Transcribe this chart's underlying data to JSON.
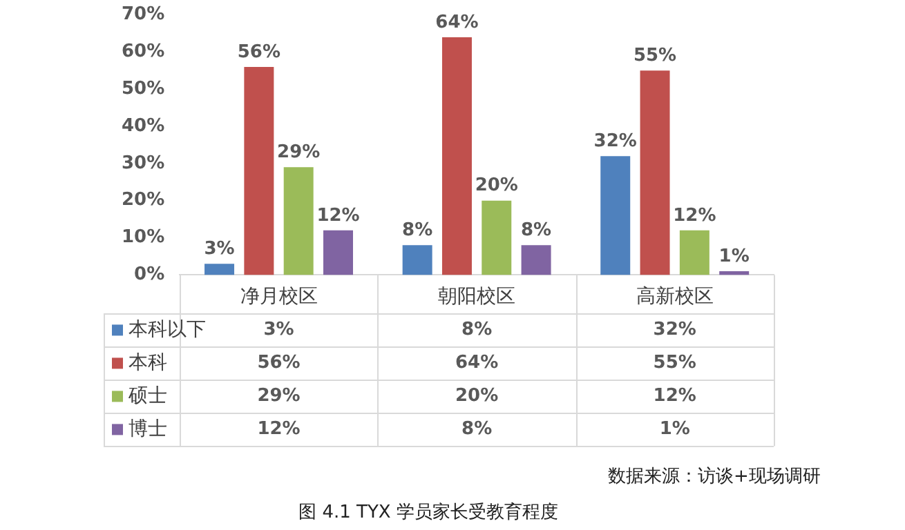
{
  "chart_data": {
    "type": "bar",
    "title": "图 4.1 TYX 学员家长受教育程度",
    "annotations": [
      "数据来源：访谈+现场调研"
    ],
    "categories": [
      "净月校区",
      "朝阳校区",
      "高新校区"
    ],
    "series": [
      {
        "name": "本科以下",
        "color": "#4f81bd",
        "values": [
          3,
          8,
          32
        ],
        "value_labels": [
          "3%",
          "8%",
          "32%"
        ]
      },
      {
        "name": "本科",
        "color": "#c0504d",
        "values": [
          56,
          64,
          55
        ],
        "value_labels": [
          "56%",
          "64%",
          "55%"
        ]
      },
      {
        "name": "硕士",
        "color": "#9bbb59",
        "values": [
          29,
          20,
          12
        ],
        "value_labels": [
          "29%",
          "20%",
          "12%"
        ]
      },
      {
        "name": "博士",
        "color": "#8064a2",
        "values": [
          12,
          8,
          1
        ],
        "value_labels": [
          "12%",
          "8%",
          "1%"
        ]
      }
    ],
    "ylim": [
      0,
      70
    ],
    "yticks": [
      {
        "value": 0,
        "label": "0%"
      },
      {
        "value": 10,
        "label": "10%"
      },
      {
        "value": 20,
        "label": "20%"
      },
      {
        "value": 30,
        "label": "30%"
      },
      {
        "value": 40,
        "label": "40%"
      },
      {
        "value": 50,
        "label": "50%"
      },
      {
        "value": 60,
        "label": "60%"
      },
      {
        "value": 70,
        "label": "70%"
      }
    ],
    "grid": false,
    "legend": "bottom"
  }
}
